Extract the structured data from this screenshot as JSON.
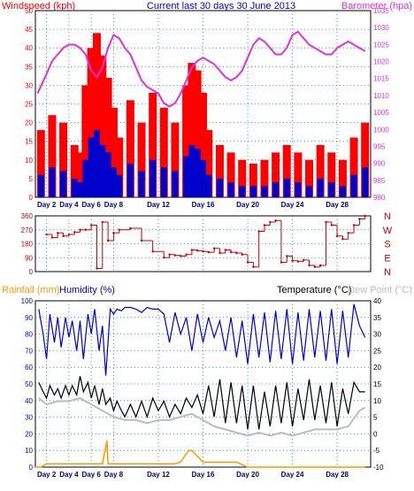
{
  "colors": {
    "wind_gust": "#ff0000",
    "wind_avg": "#0000cc",
    "wind_low": "#008000",
    "barometer": "#e030e0",
    "direction": "#cc0000",
    "rain": "#ff9900",
    "humidity": "#0000dd",
    "temperature": "#000000",
    "dewpoint": "#bbbbbb",
    "axis_date": "#000080",
    "grid": "#008888",
    "compass": "#cc0000"
  },
  "chart_data": [
    {
      "type": "line",
      "title": "Current last 30 days 30 June 2013",
      "ylabel": "Windspeed (kph)",
      "y2label": "Barometer (hpa)",
      "x_ticks": [
        "Day 2",
        "Day 4",
        "Day 6",
        "Day 8",
        "Day 12",
        "Day 16",
        "Day 20",
        "Day 24",
        "Day 28"
      ],
      "x_tick_days": [
        2,
        4,
        6,
        8,
        12,
        16,
        20,
        24,
        28
      ],
      "xlim": [
        1,
        31
      ],
      "ylim": [
        0,
        50
      ],
      "y_ticks": [
        "0",
        "5",
        "10",
        "15",
        "20",
        "25",
        "30",
        "35",
        "40",
        "45",
        "50"
      ],
      "y2lim": [
        980,
        1037.5
      ],
      "y2_ticks": [
        "980",
        "985",
        "990",
        "995",
        "1000",
        "1005",
        "1010",
        "1015",
        "1020",
        "1025",
        "1030",
        "1035"
      ],
      "series": [
        {
          "name": "Barometer (hpa)",
          "axis": "right",
          "x": [
            1.2,
            1.6,
            2.0,
            2.5,
            3.0,
            3.5,
            4.0,
            4.5,
            5.0,
            5.5,
            6.0,
            6.5,
            7.0,
            7.5,
            8.0,
            8.5,
            9.0,
            9.5,
            10.0,
            10.5,
            11.0,
            11.5,
            12.0,
            12.5,
            13.0,
            13.5,
            14.0,
            14.5,
            15.0,
            15.5,
            16.0,
            16.5,
            17.0,
            17.5,
            18.0,
            18.5,
            19.0,
            19.5,
            20.0,
            20.5,
            21.0,
            21.5,
            22.0,
            22.5,
            23.0,
            23.5,
            24.0,
            24.5,
            25.0,
            25.5,
            26.0,
            26.5,
            27.0,
            27.5,
            28.0,
            28.5,
            29.0,
            29.5,
            30.0,
            30.5
          ],
          "y": [
            1012,
            1015,
            1018,
            1022,
            1024,
            1026,
            1027,
            1027,
            1026,
            1024,
            1019,
            1017,
            1020,
            1026,
            1030,
            1029,
            1026,
            1024,
            1020,
            1016,
            1014,
            1013,
            1012,
            1009,
            1008,
            1009,
            1012,
            1016,
            1020,
            1022,
            1023,
            1022,
            1021,
            1019,
            1017,
            1016,
            1017,
            1019,
            1023,
            1027,
            1029,
            1028,
            1026,
            1024,
            1024,
            1026,
            1030,
            1031,
            1029,
            1027,
            1026,
            1025,
            1024,
            1024,
            1026,
            1027,
            1028,
            1027,
            1026,
            1025
          ]
        },
        {
          "name": "Wind gust (kph)",
          "axis": "left",
          "x": [
            1.5,
            2.5,
            3.5,
            4.5,
            5.0,
            5.5,
            6.0,
            6.5,
            7.0,
            7.5,
            8.0,
            8.5,
            9.5,
            10.5,
            11.5,
            12.5,
            13.5,
            14.5,
            15.0,
            15.5,
            16.0,
            16.5,
            17.5,
            18.5,
            19.5,
            20.5,
            21.5,
            22.5,
            23.5,
            24.5,
            25.5,
            26.5,
            27.5,
            28.5,
            29.5,
            30.5
          ],
          "y": [
            18,
            22,
            20,
            14,
            12,
            30,
            40,
            44,
            38,
            32,
            24,
            16,
            26,
            20,
            28,
            24,
            20,
            30,
            36,
            34,
            28,
            18,
            14,
            12,
            10,
            9,
            10,
            12,
            14,
            12,
            10,
            14,
            12,
            10,
            16,
            20
          ]
        },
        {
          "name": "Wind average (kph)",
          "axis": "left",
          "x": [
            1.5,
            2.5,
            3.5,
            4.5,
            5.0,
            5.5,
            6.0,
            6.5,
            7.0,
            7.5,
            8.0,
            8.5,
            9.5,
            10.5,
            11.5,
            12.5,
            13.5,
            14.5,
            15.0,
            15.5,
            16.0,
            16.5,
            17.5,
            18.5,
            19.5,
            20.5,
            21.5,
            22.5,
            23.5,
            24.5,
            25.5,
            26.5,
            27.5,
            28.5,
            29.5,
            30.5
          ],
          "y": [
            6,
            8,
            7,
            5,
            4,
            10,
            16,
            18,
            14,
            12,
            8,
            6,
            9,
            7,
            10,
            8,
            7,
            11,
            14,
            13,
            10,
            6,
            5,
            4,
            3,
            3,
            3,
            4,
            5,
            4,
            3,
            5,
            4,
            3,
            6,
            8
          ]
        }
      ]
    },
    {
      "type": "scatter",
      "ylabel_compass": [
        "N",
        "W",
        "S",
        "E",
        "N"
      ],
      "xlim": [
        1,
        31
      ],
      "ylim": [
        0,
        360
      ],
      "y_ticks": [
        "0",
        "90",
        "180",
        "270",
        "360"
      ],
      "series": [
        {
          "name": "Wind direction",
          "x": [
            2.0,
            2.5,
            3.0,
            3.5,
            4.0,
            4.5,
            5.0,
            5.5,
            6.0,
            6.5,
            7.0,
            7.5,
            8.0,
            8.5,
            9.5,
            10.5,
            11.5,
            12.5,
            13.0,
            13.5,
            14.0,
            14.5,
            15.0,
            15.5,
            16.0,
            16.5,
            17.0,
            17.5,
            18.0,
            18.5,
            19.0,
            19.5,
            20.0,
            20.5,
            21.0,
            21.5,
            22.0,
            22.5,
            23.0,
            23.5,
            24.0,
            24.5,
            25.0,
            25.5,
            26.0,
            26.5,
            27.0,
            27.5,
            28.0,
            28.5,
            29.0,
            29.5,
            30.0,
            30.5
          ],
          "y": [
            240,
            220,
            250,
            230,
            240,
            255,
            270,
            270,
            300,
            20,
            320,
            200,
            250,
            270,
            280,
            200,
            130,
            90,
            110,
            105,
            100,
            110,
            140,
            135,
            130,
            125,
            150,
            120,
            140,
            125,
            120,
            110,
            60,
            30,
            260,
            300,
            320,
            330,
            60,
            100,
            70,
            65,
            75,
            40,
            30,
            40,
            320,
            300,
            230,
            210,
            250,
            300,
            340,
            360
          ]
        }
      ]
    },
    {
      "type": "line",
      "ylabel": "Rainfall (mm)",
      "ylabel2": "Humidity (%)",
      "y2label": "Temperature (°C)",
      "y2label_extra": "Dew Point (°C)",
      "x_ticks": [
        "Day 2",
        "Day 4",
        "Day 6",
        "Day 8",
        "Day 12",
        "Day 16",
        "Day 20",
        "Day 24",
        "Day 28"
      ],
      "x_tick_days": [
        2,
        4,
        6,
        8,
        12,
        16,
        20,
        24,
        28
      ],
      "xlim": [
        1,
        31
      ],
      "ylim": [
        0,
        100
      ],
      "y_ticks": [
        "0",
        "10",
        "20",
        "30",
        "40",
        "50",
        "60",
        "70",
        "80",
        "90",
        "100"
      ],
      "y2lim": [
        -12,
        41
      ],
      "y2_ticks": [
        "-10",
        "-5",
        "0",
        "5",
        "10",
        "15",
        "20",
        "25",
        "30",
        "35",
        "40"
      ],
      "series": [
        {
          "name": "Humidity (%)",
          "axis": "left",
          "x": [
            1.3,
            1.7,
            2.0,
            2.3,
            2.7,
            3.0,
            3.3,
            3.7,
            4.0,
            4.3,
            4.7,
            5.0,
            5.3,
            5.7,
            6.0,
            6.3,
            6.7,
            7.0,
            7.3,
            7.7,
            8.0,
            8.3,
            8.7,
            9.0,
            9.5,
            10.0,
            10.5,
            11.0,
            11.5,
            12.0,
            12.5,
            13.0,
            13.5,
            14.0,
            14.5,
            15.0,
            15.5,
            16.0,
            16.5,
            17.0,
            17.5,
            18.0,
            18.5,
            19.0,
            19.5,
            20.0,
            20.5,
            21.0,
            21.5,
            22.0,
            22.5,
            23.0,
            23.5,
            24.0,
            24.5,
            25.0,
            25.5,
            26.0,
            26.5,
            27.0,
            27.5,
            28.0,
            28.5,
            29.0,
            29.5,
            30.0,
            30.5
          ],
          "y": [
            95,
            80,
            65,
            92,
            75,
            90,
            72,
            90,
            78,
            88,
            70,
            88,
            65,
            92,
            80,
            95,
            70,
            85,
            55,
            95,
            92,
            95,
            94,
            96,
            96,
            95,
            93,
            96,
            95,
            95,
            92,
            75,
            93,
            80,
            90,
            70,
            92,
            75,
            90,
            78,
            88,
            70,
            90,
            66,
            88,
            62,
            92,
            66,
            93,
            63,
            94,
            65,
            95,
            62,
            93,
            64,
            95,
            66,
            94,
            64,
            95,
            62,
            94,
            66,
            98,
            85,
            78
          ]
        },
        {
          "name": "Rainfall (mm)",
          "axis": "left",
          "x": [
            1.0,
            1.5,
            2.0,
            2.5,
            3.0,
            4.0,
            5.0,
            6.0,
            7.0,
            7.4,
            7.5,
            8.0,
            9.0,
            10.0,
            11.0,
            12.0,
            13.0,
            13.5,
            14.0,
            14.3,
            14.7,
            15.0,
            16.0,
            17.0,
            18.0,
            19.0,
            20.0,
            21.0,
            22.0,
            23.0,
            24.0,
            25.0,
            26.0,
            27.0,
            28.0,
            29.0,
            30.0,
            30.5
          ],
          "y": [
            0,
            0,
            2,
            2,
            2,
            2,
            2,
            2,
            2,
            16,
            2,
            2,
            2,
            2,
            2,
            2,
            2,
            2,
            3,
            6,
            10,
            10,
            3,
            3,
            3,
            3,
            0,
            0,
            0,
            0,
            0,
            0,
            0,
            0,
            0,
            0,
            0,
            0
          ]
        },
        {
          "name": "Temperature (°C)",
          "axis": "right",
          "x": [
            1.3,
            1.7,
            2.0,
            2.3,
            2.7,
            3.0,
            3.3,
            3.7,
            4.0,
            4.3,
            4.7,
            5.0,
            5.3,
            5.7,
            6.0,
            6.3,
            6.7,
            7.0,
            7.3,
            7.7,
            8.0,
            8.3,
            8.7,
            9.0,
            9.5,
            10.0,
            10.5,
            11.0,
            11.5,
            12.0,
            12.5,
            13.0,
            13.5,
            14.0,
            14.5,
            15.0,
            15.5,
            16.0,
            16.5,
            17.0,
            17.5,
            18.0,
            18.5,
            19.0,
            19.5,
            20.0,
            20.5,
            21.0,
            21.5,
            22.0,
            22.5,
            23.0,
            23.5,
            24.0,
            24.5,
            25.0,
            25.5,
            26.0,
            26.5,
            27.0,
            27.5,
            28.0,
            28.5,
            29.0,
            29.5,
            30.0,
            30.5
          ],
          "y": [
            15,
            12,
            10,
            14,
            11,
            13,
            10,
            14,
            11,
            14,
            11,
            17,
            12,
            15,
            10,
            14,
            8,
            13,
            8,
            10,
            6,
            9,
            6,
            4,
            8,
            4,
            9,
            4,
            10,
            6,
            9,
            4,
            8,
            5,
            10,
            7,
            11,
            5,
            14,
            4,
            16,
            2,
            15,
            2,
            14,
            0,
            14,
            0,
            12,
            1,
            14,
            2,
            15,
            1,
            13,
            3,
            16,
            3,
            14,
            2,
            15,
            1,
            13,
            5,
            15,
            12,
            12
          ]
        },
        {
          "name": "Dew Point (°C)",
          "axis": "right",
          "x": [
            1.3,
            2.0,
            3.0,
            4.0,
            5.0,
            6.0,
            7.0,
            8.0,
            9.0,
            10.0,
            11.0,
            12.0,
            13.0,
            14.0,
            15.0,
            16.0,
            17.0,
            18.0,
            19.0,
            20.0,
            21.0,
            22.0,
            23.0,
            24.0,
            25.0,
            26.0,
            27.0,
            28.0,
            29.0,
            30.0,
            30.5
          ],
          "y": [
            10,
            8,
            9,
            9,
            10,
            8,
            6,
            4,
            3,
            3,
            2,
            3,
            3,
            4,
            5,
            3,
            1,
            0,
            -1,
            -2,
            -1,
            -2,
            -1,
            -2,
            -1,
            0,
            0,
            0,
            1,
            6,
            7
          ]
        }
      ]
    }
  ]
}
